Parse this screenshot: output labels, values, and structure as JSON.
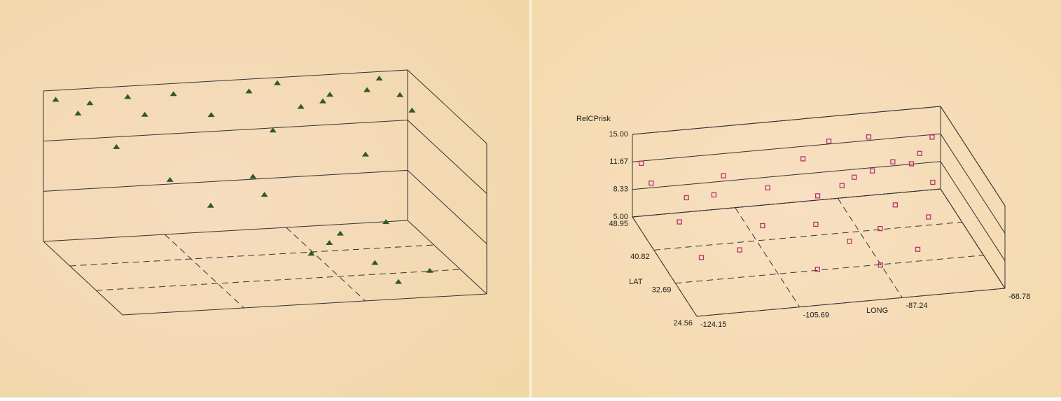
{
  "chart_data": [
    {
      "type": "scatter3d",
      "marker": "triangle",
      "color": "#2f5a26",
      "xlim": [
        -124.15,
        -68.78
      ],
      "ylim": [
        24.56,
        48.95
      ],
      "zlim": [
        5,
        15
      ],
      "x": [
        -122.8,
        -120.1,
        -117.5,
        -114.9,
        -112.3,
        -109.8,
        -107.2,
        -104.6,
        -102.1,
        -99.4,
        -96.9,
        -94.3,
        -91.8,
        -89.2,
        -86.7,
        -84.1,
        -81.6,
        -79.0,
        -76.5,
        -73.9,
        -71.4,
        -70.2,
        -88.3,
        -83.0,
        -78.6,
        -95.5,
        -75.2,
        -92.1,
        -86.0,
        -80.7
      ],
      "y": [
        47.9,
        46.5,
        48.1,
        45.2,
        47.0,
        46.8,
        44.3,
        48.5,
        42.1,
        47.4,
        39.6,
        46.1,
        43.8,
        47.7,
        45.5,
        44.0,
        46.9,
        41.2,
        45.8,
        47.3,
        46.0,
        44.7,
        33.5,
        30.2,
        35.7,
        38.9,
        29.1,
        31.4,
        34.8,
        27.6
      ],
      "z": [
        14.6,
        13.9,
        14.2,
        11.8,
        14.7,
        13.5,
        9.6,
        14.4,
        8.2,
        13.1,
        10.5,
        14.8,
        12.6,
        14.9,
        13.7,
        14.3,
        14.1,
        11.2,
        14.5,
        14.9,
        14.0,
        13.2,
        7.1,
        6.3,
        7.8,
        9.4,
        5.8,
        6.9,
        7.4,
        5.5
      ]
    },
    {
      "type": "scatter3d",
      "marker": "square",
      "color": "#b5346e",
      "xlabel": "LONG",
      "ylabel": "LAT",
      "zlabel": "RelCPrisk",
      "xlim": [
        -124.15,
        -68.78
      ],
      "ylim": [
        24.56,
        48.95
      ],
      "zlim": [
        5,
        15
      ],
      "xticks": [
        -124.15,
        -105.69,
        -87.24,
        -68.78
      ],
      "yticks": [
        24.56,
        32.69,
        40.82,
        48.95
      ],
      "zticks": [
        {
          "value": 5,
          "label": "5.00"
        },
        {
          "value": 8.33,
          "label": "8.33"
        },
        {
          "value": 11.67,
          "label": "11.67"
        },
        {
          "value": 15,
          "label": "15.00"
        }
      ],
      "x": [
        -123.2,
        -122.5,
        -120.8,
        -118.9,
        -116.4,
        -113.7,
        -111.2,
        -108.6,
        -105.3,
        -102.8,
        -99.5,
        -97.1,
        -95.8,
        -94.2,
        -92.6,
        -91.3,
        -90.1,
        -88.7,
        -87.5,
        -86.2,
        -85.0,
        -83.6,
        -82.4,
        -81.1,
        -79.8,
        -78.3,
        -77.0,
        -75.6,
        -74.1,
        -72.5
      ],
      "y": [
        47.6,
        45.3,
        38.2,
        33.9,
        44.8,
        40.1,
        35.6,
        47.2,
        39.4,
        42.7,
        30.8,
        36.5,
        44.1,
        41.9,
        33.2,
        38.8,
        46.3,
        29.7,
        42.2,
        35.1,
        40.6,
        44.9,
        37.4,
        31.6,
        43.8,
        39.9,
        36.2,
        42.5,
        40.7,
        44.3
      ],
      "z": [
        12.1,
        10.8,
        9.5,
        7.2,
        8.9,
        11.4,
        6.8,
        9.9,
        7.5,
        10.3,
        6.1,
        8.6,
        12.7,
        9.2,
        7.9,
        11.8,
        13.4,
        6.5,
        10.9,
        8.1,
        12.3,
        14.2,
        9.6,
        7.0,
        11.5,
        13.1,
        8.4,
        12.9,
        10.2,
        13.8
      ]
    }
  ]
}
